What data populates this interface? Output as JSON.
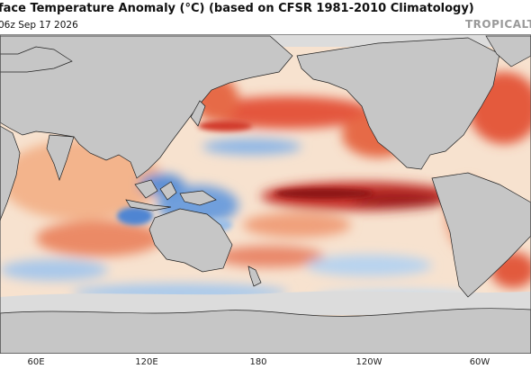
{
  "header": {
    "title": "face Temperature Anomaly (°C) (based on CFSR 1981-2010 Climatology)",
    "subtitle": "06z Sep 17 2026",
    "watermark": "TROPICALTI"
  },
  "map": {
    "longitude_labels": [
      "60E",
      "120E",
      "180",
      "120W",
      "60W"
    ]
  }
}
